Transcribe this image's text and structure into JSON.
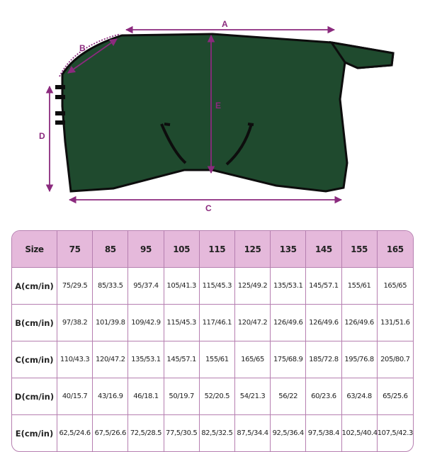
{
  "diagram": {
    "labels": {
      "a": "A",
      "b": "B",
      "c": "C",
      "d": "D",
      "e": "E"
    },
    "colors": {
      "blanket": "#1f4a2e",
      "trim": "#0d0d0d",
      "measure": "#8b2a7e",
      "header": "#e5b9db"
    }
  },
  "table": {
    "headers": [
      "Size",
      "75",
      "85",
      "95",
      "105",
      "115",
      "125",
      "135",
      "145",
      "155",
      "165"
    ],
    "rows": [
      {
        "label": "A(cm/in)",
        "values": [
          "75/29.5",
          "85/33.5",
          "95/37.4",
          "105/41.3",
          "115/45.3",
          "125/49.2",
          "135/53.1",
          "145/57.1",
          "155/61",
          "165/65"
        ]
      },
      {
        "label": "B(cm/in)",
        "values": [
          "97/38.2",
          "101/39.8",
          "109/42.9",
          "115/45.3",
          "117/46.1",
          "120/47.2",
          "126/49.6",
          "126/49.6",
          "126/49.6",
          "131/51.6"
        ]
      },
      {
        "label": "C(cm/in)",
        "values": [
          "110/43.3",
          "120/47.2",
          "135/53.1",
          "145/57.1",
          "155/61",
          "165/65",
          "175/68.9",
          "185/72.8",
          "195/76.8",
          "205/80.7"
        ]
      },
      {
        "label": "D(cm/in)",
        "values": [
          "40/15.7",
          "43/16.9",
          "46/18.1",
          "50/19.7",
          "52/20.5",
          "54/21.3",
          "56/22",
          "60/23.6",
          "63/24.8",
          "65/25.6"
        ]
      },
      {
        "label": "E(cm/in)",
        "values": [
          "62,5/24.6",
          "67,5/26.6",
          "72,5/28.5",
          "77,5/30.5",
          "82,5/32.5",
          "87,5/34.4",
          "92,5/36.4",
          "97,5/38.4",
          "102,5/40.4",
          "107,5/42.3"
        ]
      }
    ]
  }
}
